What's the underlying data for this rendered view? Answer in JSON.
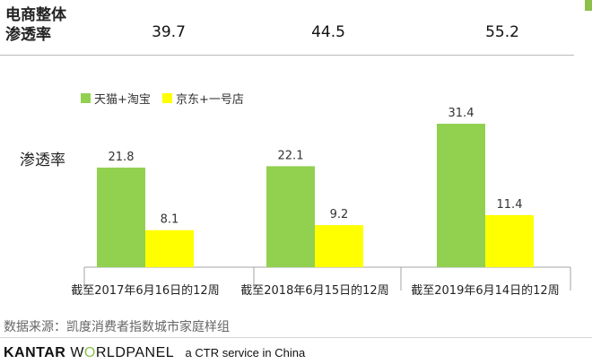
{
  "table": {
    "row_label_line1": "电商整体",
    "row_label_line2": "渗透率",
    "values": [
      "39.7",
      "44.5",
      "55.2"
    ]
  },
  "chart_data": {
    "type": "bar",
    "ylabel": "渗透率",
    "categories": [
      "截至2017年6月16日的12周",
      "截至2018年6月15日的12周",
      "截至2019年6月14日的12周"
    ],
    "series": [
      {
        "name": "天猫+淘宝",
        "color": "#92d050",
        "values": [
          21.8,
          22.1,
          31.4
        ]
      },
      {
        "name": "京东+一号店",
        "color": "#ffff00",
        "values": [
          8.1,
          9.2,
          11.4
        ]
      }
    ],
    "ylim": [
      0,
      35
    ],
    "grid": false,
    "legend": "top-left"
  },
  "footer": {
    "source": "数据来源：凯度消费者指数城市家庭样组",
    "brand_kantar": "KANTAR",
    "brand_w": "W",
    "brand_o": "O",
    "brand_rest": "RLDPANEL",
    "brand_tag": "a CTR service in China"
  }
}
